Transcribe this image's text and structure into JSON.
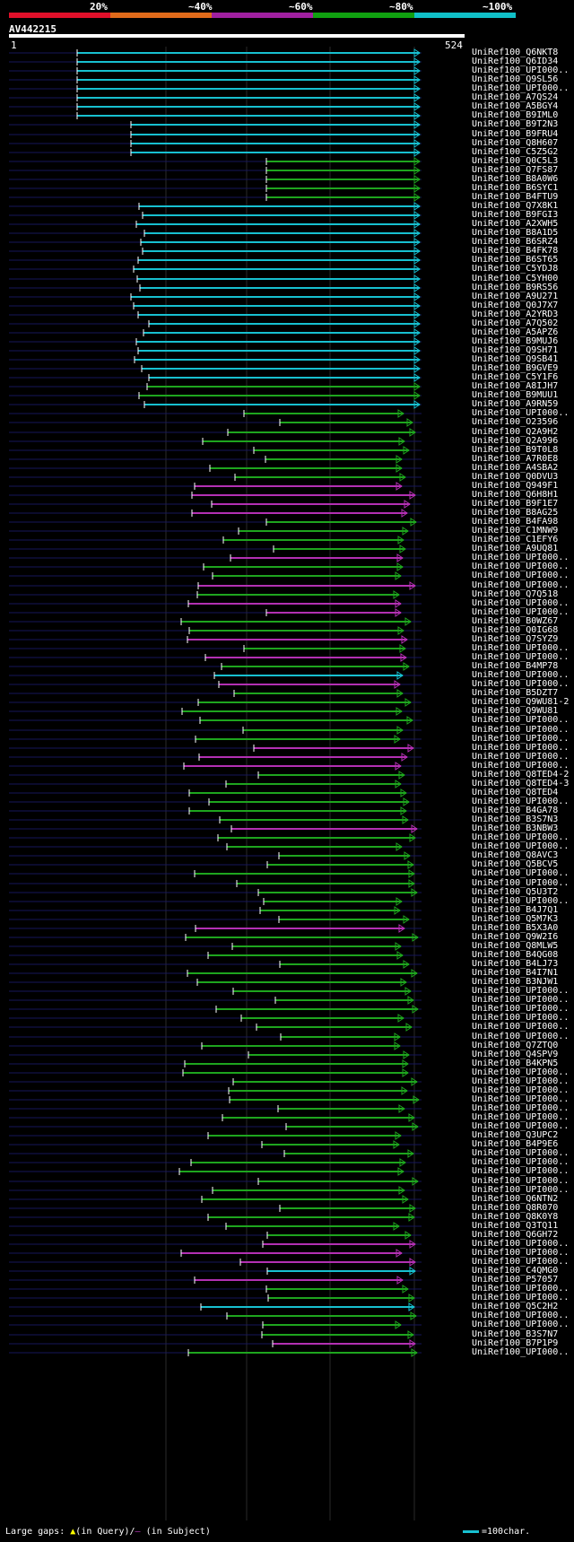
{
  "scale": {
    "labels": [
      "20%",
      "~40%",
      "~60%",
      "~80%",
      "~100%"
    ],
    "colors": [
      "#e0102a",
      "#e06a1a",
      "#a020a0",
      "#10a010",
      "#10c0c8"
    ]
  },
  "query": {
    "name": "AV442215",
    "start": "1",
    "end": "524"
  },
  "colors": {
    "cyan": "#17c0d0",
    "green": "#1ea51e",
    "magenta": "#b330b3",
    "navy": "#16165a",
    "white": "#ffffff",
    "yellow": "#ffff40"
  },
  "hits": [
    {
      "label": "UniRef100_Q6NKT8",
      "color": "cyan"
    },
    {
      "label": "UniRef100_Q6ID34",
      "color": "cyan"
    },
    {
      "label": "UniRef100_UPI000..",
      "color": "cyan"
    },
    {
      "label": "UniRef100_Q9SL56",
      "color": "cyan"
    },
    {
      "label": "UniRef100_UPI000..",
      "color": "cyan"
    },
    {
      "label": "UniRef100_A7QS24",
      "color": "cyan"
    },
    {
      "label": "UniRef100_A5BGY4",
      "color": "cyan"
    },
    {
      "label": "UniRef100_B9IML0",
      "color": "cyan"
    },
    {
      "label": "UniRef100_B9T2N3",
      "color": "cyan"
    },
    {
      "label": "UniRef100_B9FRU4",
      "color": "cyan"
    },
    {
      "label": "UniRef100_Q8H607",
      "color": "cyan"
    },
    {
      "label": "UniRef100_C5Z5G2",
      "color": "cyan"
    },
    {
      "label": "UniRef100_Q0C5L3",
      "color": "green"
    },
    {
      "label": "UniRef100_Q7FS87",
      "color": "green"
    },
    {
      "label": "UniRef100_B8A0W6",
      "color": "green"
    },
    {
      "label": "UniRef100_B6SYC1",
      "color": "green"
    },
    {
      "label": "UniRef100_B4FTU9",
      "color": "green"
    },
    {
      "label": "UniRef100_Q7X8K1",
      "color": "cyan"
    },
    {
      "label": "UniRef100_B9FGI3",
      "color": "cyan"
    },
    {
      "label": "UniRef100_A2XWH5",
      "color": "cyan"
    },
    {
      "label": "UniRef100_B8A1D5",
      "color": "cyan"
    },
    {
      "label": "UniRef100_B6SRZ4",
      "color": "cyan"
    },
    {
      "label": "UniRef100_B4FK78",
      "color": "cyan"
    },
    {
      "label": "UniRef100_B6ST65",
      "color": "cyan"
    },
    {
      "label": "UniRef100_C5YDJ8",
      "color": "cyan"
    },
    {
      "label": "UniRef100_C5YH00",
      "color": "cyan"
    },
    {
      "label": "UniRef100_B9RS56",
      "color": "cyan"
    },
    {
      "label": "UniRef100_A9U271",
      "color": "cyan"
    },
    {
      "label": "UniRef100_Q0J7X7",
      "color": "cyan"
    },
    {
      "label": "UniRef100_A2YRD3",
      "color": "cyan"
    },
    {
      "label": "UniRef100_A7Q502",
      "color": "cyan"
    },
    {
      "label": "UniRef100_A5APZ6",
      "color": "cyan"
    },
    {
      "label": "UniRef100_B9MUJ6",
      "color": "cyan"
    },
    {
      "label": "UniRef100_Q9SH71",
      "color": "cyan"
    },
    {
      "label": "UniRef100_Q9SB41",
      "color": "cyan"
    },
    {
      "label": "UniRef100_B9GVE9",
      "color": "cyan"
    },
    {
      "label": "UniRef100_C5Y1F6",
      "color": "cyan"
    },
    {
      "label": "UniRef100_A8IJH7",
      "color": "green"
    },
    {
      "label": "UniRef100_B9MUU1",
      "color": "green"
    },
    {
      "label": "UniRef100_A9RN59",
      "color": "cyan"
    },
    {
      "label": "UniRef100_UPI000..",
      "color": "green"
    },
    {
      "label": "UniRef100_O23596",
      "color": "green"
    },
    {
      "label": "UniRef100_Q2A9H2",
      "color": "green"
    },
    {
      "label": "UniRef100_Q2A996",
      "color": "green"
    },
    {
      "label": "UniRef100_B9T0L8",
      "color": "green"
    },
    {
      "label": "UniRef100_A7R0E8",
      "color": "green"
    },
    {
      "label": "UniRef100_A4SBA2",
      "color": "green"
    },
    {
      "label": "UniRef100_Q0DVU3",
      "color": "green"
    },
    {
      "label": "UniRef100_Q949F1",
      "color": "magenta"
    },
    {
      "label": "UniRef100_Q6H8H1",
      "color": "magenta"
    },
    {
      "label": "UniRef100_B9F1E7",
      "color": "magenta"
    },
    {
      "label": "UniRef100_B8AG25",
      "color": "magenta"
    },
    {
      "label": "UniRef100_B4FA98",
      "color": "green"
    },
    {
      "label": "UniRef100_C1MNW9",
      "color": "green"
    },
    {
      "label": "UniRef100_C1EFY6",
      "color": "green"
    },
    {
      "label": "UniRef100_A9UQ81",
      "color": "green"
    },
    {
      "label": "UniRef100_UPI000..",
      "color": "magenta"
    },
    {
      "label": "UniRef100_UPI000..",
      "color": "green"
    },
    {
      "label": "UniRef100_UPI000..",
      "color": "green"
    },
    {
      "label": "UniRef100_UPI000..",
      "color": "magenta"
    },
    {
      "label": "UniRef100_Q7Q518",
      "color": "green"
    },
    {
      "label": "UniRef100_UPI000..",
      "color": "magenta"
    },
    {
      "label": "UniRef100_UPI000..",
      "color": "magenta"
    },
    {
      "label": "UniRef100_B0WZ67",
      "color": "green"
    },
    {
      "label": "UniRef100_Q0IG68",
      "color": "green"
    },
    {
      "label": "UniRef100_Q7SYZ9",
      "color": "magenta"
    },
    {
      "label": "UniRef100_UPI000..",
      "color": "green"
    },
    {
      "label": "UniRef100_UPI000..",
      "color": "magenta"
    },
    {
      "label": "UniRef100_B4MP78",
      "color": "green"
    },
    {
      "label": "UniRef100_UPI000..",
      "color": "cyan"
    },
    {
      "label": "UniRef100_UPI000..",
      "color": "magenta"
    },
    {
      "label": "UniRef100_B5DZT7",
      "color": "green"
    },
    {
      "label": "UniRef100_Q9WU81-2",
      "color": "green"
    },
    {
      "label": "UniRef100_Q9WU81",
      "color": "green"
    },
    {
      "label": "UniRef100_UPI000..",
      "color": "green"
    },
    {
      "label": "UniRef100_UPI000..",
      "color": "green"
    },
    {
      "label": "UniRef100_UPI000..",
      "color": "green"
    },
    {
      "label": "UniRef100_UPI000..",
      "color": "magenta"
    },
    {
      "label": "UniRef100_UPI000..",
      "color": "magenta"
    },
    {
      "label": "UniRef100_UPI000..",
      "color": "magenta"
    },
    {
      "label": "UniRef100_Q8TED4-2",
      "color": "green"
    },
    {
      "label": "UniRef100_Q8TED4-3",
      "color": "green"
    },
    {
      "label": "UniRef100_Q8TED4",
      "color": "green"
    },
    {
      "label": "UniRef100_UPI000..",
      "color": "green"
    },
    {
      "label": "UniRef100_B4GA78",
      "color": "green"
    },
    {
      "label": "UniRef100_B3S7N3",
      "color": "green"
    },
    {
      "label": "UniRef100_B3NBW3",
      "color": "magenta"
    },
    {
      "label": "UniRef100_UPI000..",
      "color": "green"
    },
    {
      "label": "UniRef100_UPI000..",
      "color": "green"
    },
    {
      "label": "UniRef100_Q8AVC3",
      "color": "green"
    },
    {
      "label": "UniRef100_Q5BCV5",
      "color": "green"
    },
    {
      "label": "UniRef100_UPI000..",
      "color": "green"
    },
    {
      "label": "UniRef100_UPI000..",
      "color": "green"
    },
    {
      "label": "UniRef100_Q5U3T2",
      "color": "green"
    },
    {
      "label": "UniRef100_UPI000..",
      "color": "green"
    },
    {
      "label": "UniRef100_B4J7Q1",
      "color": "green"
    },
    {
      "label": "UniRef100_Q5M7K3",
      "color": "green"
    },
    {
      "label": "UniRef100_B5X3A0",
      "color": "magenta"
    },
    {
      "label": "UniRef100_Q9W2I6",
      "color": "green"
    },
    {
      "label": "UniRef100_Q8MLW5",
      "color": "green"
    },
    {
      "label": "UniRef100_B4QG08",
      "color": "green"
    },
    {
      "label": "UniRef100_B4LJ73",
      "color": "green"
    },
    {
      "label": "UniRef100_B4I7N1",
      "color": "green"
    },
    {
      "label": "UniRef100_B3NJW1",
      "color": "green"
    },
    {
      "label": "UniRef100_UPI000..",
      "color": "green"
    },
    {
      "label": "UniRef100_UPI000..",
      "color": "green"
    },
    {
      "label": "UniRef100_UPI000..",
      "color": "green"
    },
    {
      "label": "UniRef100_UPI000..",
      "color": "green"
    },
    {
      "label": "UniRef100_UPI000..",
      "color": "green"
    },
    {
      "label": "UniRef100_UPI000..",
      "color": "green"
    },
    {
      "label": "UniRef100_Q7ZTQ0",
      "color": "green"
    },
    {
      "label": "UniRef100_Q4SPV9",
      "color": "green"
    },
    {
      "label": "UniRef100_B4KPN5",
      "color": "green"
    },
    {
      "label": "UniRef100_UPI000..",
      "color": "green"
    },
    {
      "label": "UniRef100_UPI000..",
      "color": "green"
    },
    {
      "label": "UniRef100_UPI000..",
      "color": "green"
    },
    {
      "label": "UniRef100_UPI000..",
      "color": "green"
    },
    {
      "label": "UniRef100_UPI000..",
      "color": "green"
    },
    {
      "label": "UniRef100_UPI000..",
      "color": "green"
    },
    {
      "label": "UniRef100_UPI000..",
      "color": "green"
    },
    {
      "label": "UniRef100_Q3UPC2",
      "color": "green"
    },
    {
      "label": "UniRef100_B4P9E6",
      "color": "green"
    },
    {
      "label": "UniRef100_UPI000..",
      "color": "green"
    },
    {
      "label": "UniRef100_UPI000..",
      "color": "green"
    },
    {
      "label": "UniRef100_UPI000..",
      "color": "green"
    },
    {
      "label": "UniRef100_UPI000..",
      "color": "green"
    },
    {
      "label": "UniRef100_UPI000..",
      "color": "green"
    },
    {
      "label": "UniRef100_Q6NTN2",
      "color": "green"
    },
    {
      "label": "UniRef100_Q8R070",
      "color": "green"
    },
    {
      "label": "UniRef100_Q8K0Y8",
      "color": "green"
    },
    {
      "label": "UniRef100_Q3TQ11",
      "color": "green"
    },
    {
      "label": "UniRef100_Q6GH72",
      "color": "green"
    },
    {
      "label": "UniRef100_UPI000..",
      "color": "magenta"
    },
    {
      "label": "UniRef100_UPI000..",
      "color": "magenta"
    },
    {
      "label": "UniRef100_UPI000..",
      "color": "magenta"
    },
    {
      "label": "UniRef100_C4QMG0",
      "color": "cyan"
    },
    {
      "label": "UniRef100_P57057",
      "color": "magenta"
    },
    {
      "label": "UniRef100_UPI000..",
      "color": "green"
    },
    {
      "label": "UniRef100_UPI000..",
      "color": "green"
    },
    {
      "label": "UniRef100_Q5C2H2",
      "color": "cyan"
    },
    {
      "label": "UniRef100_UPI000..",
      "color": "green"
    },
    {
      "label": "UniRef100_UPI000..",
      "color": "green"
    },
    {
      "label": "UniRef100_B3S7N7",
      "color": "green"
    },
    {
      "label": "UniRef100_B7P1P9",
      "color": "magenta"
    },
    {
      "label": "UniRef100_UPI000..",
      "color": "green"
    }
  ],
  "legend": {
    "prefix": "Large gaps:",
    "query_part": "(in Query)/",
    "subject_part": "(in Subject)",
    "scale_text": "=100char."
  }
}
